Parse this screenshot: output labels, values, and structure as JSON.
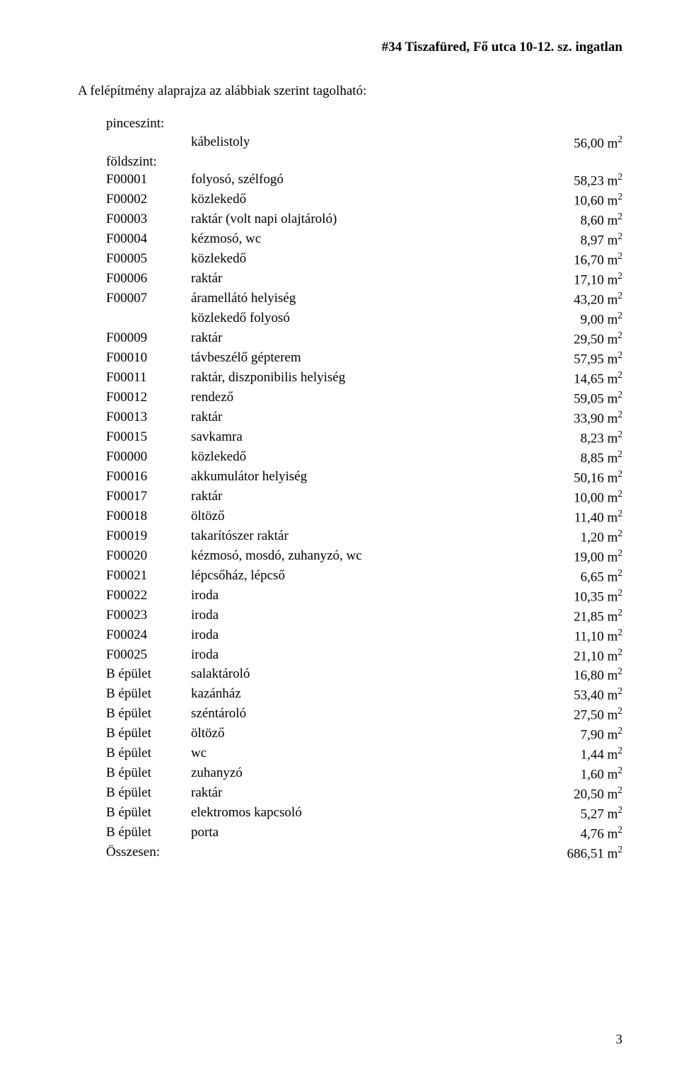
{
  "header": "#34   Tiszafüred, Fő utca 10-12. sz. ingatlan",
  "intro": "A felépítmény alaprajza az alábbiak szerint tagolható:",
  "section1_label": "pinceszint:",
  "section1": [
    {
      "code": "",
      "desc": "kábelistoly",
      "val": "56,00 m"
    }
  ],
  "section2_label": "földszint:",
  "section2": [
    {
      "code": "F00001",
      "desc": "folyosó, szélfogó",
      "val": "58,23 m"
    },
    {
      "code": "F00002",
      "desc": "közlekedő",
      "val": "10,60 m"
    },
    {
      "code": "F00003",
      "desc": "raktár (volt napi olajtároló)",
      "val": "8,60 m"
    },
    {
      "code": "F00004",
      "desc": "kézmosó, wc",
      "val": "8,97 m"
    },
    {
      "code": "F00005",
      "desc": "közlekedő",
      "val": "16,70 m"
    },
    {
      "code": "F00006",
      "desc": "raktár",
      "val": "17,10 m"
    },
    {
      "code": "F00007",
      "desc": "áramellátó helyiség",
      "val": "43,20 m"
    },
    {
      "code": "",
      "desc": "közlekedő folyosó",
      "val": "9,00 m"
    },
    {
      "code": "F00009",
      "desc": "raktár",
      "val": "29,50 m"
    },
    {
      "code": "F00010",
      "desc": "távbeszélő gépterem",
      "val": "57,95 m"
    },
    {
      "code": "F00011",
      "desc": "raktár, diszponibilis helyiség",
      "val": "14,65 m"
    },
    {
      "code": "F00012",
      "desc": "rendező",
      "val": "59,05 m"
    },
    {
      "code": "F00013",
      "desc": "raktár",
      "val": "33,90 m"
    },
    {
      "code": "F00015",
      "desc": "savkamra",
      "val": "8,23 m"
    },
    {
      "code": "F00000",
      "desc": "közlekedő",
      "val": "8,85 m"
    },
    {
      "code": "F00016",
      "desc": "akkumulátor helyiség",
      "val": "50,16 m"
    },
    {
      "code": "F00017",
      "desc": "raktár",
      "val": "10,00 m"
    },
    {
      "code": "F00018",
      "desc": "öltöző",
      "val": "11,40 m"
    },
    {
      "code": "F00019",
      "desc": "takarítószer raktár",
      "val": "1,20 m"
    },
    {
      "code": "F00020",
      "desc": "kézmosó, mosdó, zuhanyzó, wc",
      "val": "19,00 m"
    },
    {
      "code": "F00021",
      "desc": "lépcsőház, lépcső",
      "val": "6,65 m"
    },
    {
      "code": "F00022",
      "desc": "iroda",
      "val": "10,35 m"
    },
    {
      "code": "F00023",
      "desc": "iroda",
      "val": "21,85 m"
    },
    {
      "code": "F00024",
      "desc": "iroda",
      "val": "11,10 m"
    },
    {
      "code": "F00025",
      "desc": "iroda",
      "val": "21,10 m"
    },
    {
      "code": "B épület",
      "desc": "salaktároló",
      "val": "16,80 m"
    },
    {
      "code": "B épület",
      "desc": "kazánház",
      "val": "53,40 m"
    },
    {
      "code": "B épület",
      "desc": "széntároló",
      "val": "27,50 m"
    },
    {
      "code": "B épület",
      "desc": "öltöző",
      "val": "7,90 m"
    },
    {
      "code": "B épület",
      "desc": "wc",
      "val": "1,44 m"
    },
    {
      "code": "B épület",
      "desc": "zuhanyzó",
      "val": "1,60 m"
    },
    {
      "code": "B épület",
      "desc": "raktár",
      "val": "20,50 m"
    },
    {
      "code": "B épület",
      "desc": "elektromos kapcsoló",
      "val": "5,27 m"
    },
    {
      "code": "B épület",
      "desc": "porta",
      "val": "4,76 m"
    }
  ],
  "total": {
    "code": "Összesen:",
    "desc": "",
    "val": "686,51 m"
  },
  "page_number": "3"
}
